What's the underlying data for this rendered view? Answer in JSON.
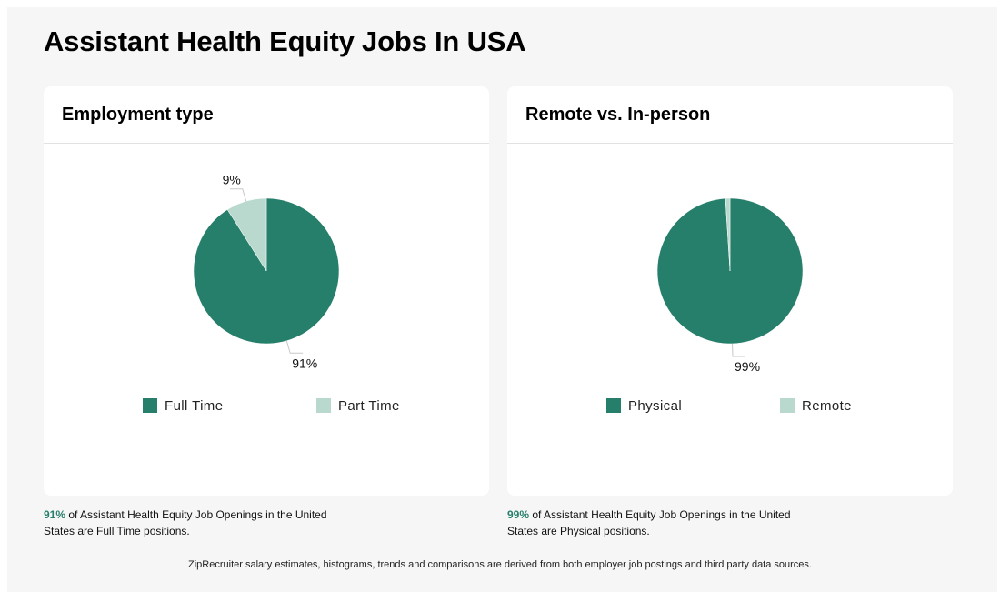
{
  "page": {
    "title": "Assistant Health Equity Jobs In USA",
    "footer": "ZipRecruiter salary estimates, histograms, trends and comparisons are derived from both employer job postings and third party data sources."
  },
  "colors": {
    "primary": "#267f6a",
    "secondary": "#b9d9cf"
  },
  "chart_data": [
    {
      "type": "pie",
      "title": "Employment type",
      "categories": [
        "Full Time",
        "Part Time"
      ],
      "values": [
        91,
        9
      ],
      "labels": [
        "91%",
        "9%"
      ],
      "legend_position": "bottom"
    },
    {
      "type": "pie",
      "title": "Remote vs. In-person",
      "categories": [
        "Physical",
        "Remote"
      ],
      "values": [
        99,
        1
      ],
      "labels": [
        "99%",
        ""
      ],
      "legend_position": "bottom"
    }
  ],
  "captions": [
    {
      "highlight": "91%",
      "text": " of Assistant Health Equity Job Openings in the United States are Full Time positions."
    },
    {
      "highlight": "99%",
      "text": " of Assistant Health Equity Job Openings in the United States are Physical positions."
    }
  ]
}
